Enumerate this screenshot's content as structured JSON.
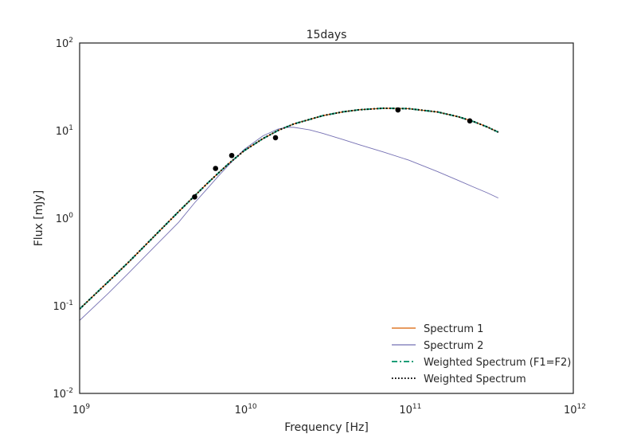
{
  "chart_data": {
    "type": "line",
    "title": "15days",
    "xlabel": "Frequency [Hz]",
    "ylabel": "Flux [mJy]",
    "xscale": "log",
    "yscale": "log",
    "xlim": [
      1000000000.0,
      1000000000000.0
    ],
    "ylim": [
      0.01,
      100
    ],
    "grid": false,
    "legend_position": "lower-right",
    "xticks": [
      {
        "value": 1000000000.0,
        "base": "10",
        "exp": "9"
      },
      {
        "value": 10000000000.0,
        "base": "10",
        "exp": "10"
      },
      {
        "value": 100000000000.0,
        "base": "10",
        "exp": "11"
      },
      {
        "value": 1000000000000.0,
        "base": "10",
        "exp": "12"
      }
    ],
    "yticks": [
      {
        "value": 0.01,
        "base": "10",
        "exp": "-2"
      },
      {
        "value": 0.1,
        "base": "10",
        "exp": "-1"
      },
      {
        "value": 1,
        "base": "10",
        "exp": "0"
      },
      {
        "value": 10,
        "base": "10",
        "exp": "1"
      },
      {
        "value": 100,
        "base": "10",
        "exp": "2"
      }
    ],
    "series": [
      {
        "name": "Spectrum 1",
        "color": "#d95f02",
        "style": "solid",
        "x": [
          1000000000.0,
          1500000000.0,
          2000000000.0,
          3000000000.0,
          4000000000.0,
          5000000000.0,
          6000000000.0,
          7000000000.0,
          8000000000.0,
          10000000000.0,
          13000000000.0,
          16000000000.0,
          20000000000.0,
          30000000000.0,
          40000000000.0,
          50000000000.0,
          70000000000.0,
          100000000000.0,
          150000000000.0,
          200000000000.0,
          250000000000.0,
          300000000000.0,
          350000000000.0
        ],
        "y": [
          0.092,
          0.19,
          0.32,
          0.69,
          1.19,
          1.8,
          2.52,
          3.3,
          4.15,
          5.9,
          8.1,
          10.0,
          11.9,
          14.8,
          16.4,
          17.3,
          18.0,
          17.8,
          16.3,
          14.4,
          12.6,
          11.0,
          9.6
        ]
      },
      {
        "name": "Spectrum 2",
        "color": "#7570b3",
        "style": "solid",
        "x": [
          1000000000.0,
          1500000000.0,
          2000000000.0,
          3000000000.0,
          4000000000.0,
          5000000000.0,
          6000000000.0,
          7000000000.0,
          8000000000.0,
          10000000000.0,
          13000000000.0,
          16000000000.0,
          18000000000.0,
          20000000000.0,
          25000000000.0,
          30000000000.0,
          40000000000.0,
          50000000000.0,
          70000000000.0,
          100000000000.0,
          150000000000.0,
          200000000000.0,
          250000000000.0,
          300000000000.0,
          350000000000.0
        ],
        "y": [
          0.068,
          0.14,
          0.24,
          0.52,
          0.9,
          1.5,
          2.2,
          3.05,
          4.0,
          6.1,
          8.7,
          10.4,
          10.9,
          10.9,
          10.2,
          9.3,
          7.9,
          6.9,
          5.7,
          4.6,
          3.4,
          2.7,
          2.25,
          1.95,
          1.7
        ]
      },
      {
        "name": "Weighted Spectrum (F1=F2)",
        "color": "#1b9e77",
        "style": "dashdot",
        "x": [
          1000000000.0,
          1500000000.0,
          2000000000.0,
          3000000000.0,
          4000000000.0,
          5000000000.0,
          6000000000.0,
          7000000000.0,
          8000000000.0,
          10000000000.0,
          13000000000.0,
          16000000000.0,
          20000000000.0,
          30000000000.0,
          40000000000.0,
          50000000000.0,
          70000000000.0,
          100000000000.0,
          150000000000.0,
          200000000000.0,
          250000000000.0,
          300000000000.0,
          350000000000.0
        ],
        "y": [
          0.092,
          0.19,
          0.32,
          0.69,
          1.19,
          1.8,
          2.52,
          3.3,
          4.15,
          5.9,
          8.1,
          10.0,
          11.9,
          14.8,
          16.4,
          17.3,
          18.0,
          17.8,
          16.3,
          14.4,
          12.6,
          11.0,
          9.6
        ]
      },
      {
        "name": "Weighted Spectrum",
        "color": "#000000",
        "style": "dotted",
        "x": [
          1000000000.0,
          1500000000.0,
          2000000000.0,
          3000000000.0,
          4000000000.0,
          5000000000.0,
          6000000000.0,
          7000000000.0,
          8000000000.0,
          10000000000.0,
          13000000000.0,
          16000000000.0,
          20000000000.0,
          30000000000.0,
          40000000000.0,
          50000000000.0,
          70000000000.0,
          100000000000.0,
          150000000000.0,
          200000000000.0,
          250000000000.0,
          300000000000.0,
          350000000000.0
        ],
        "y": [
          0.092,
          0.19,
          0.32,
          0.69,
          1.19,
          1.8,
          2.52,
          3.3,
          4.15,
          5.9,
          8.1,
          10.0,
          11.9,
          14.8,
          16.4,
          17.3,
          18.0,
          17.8,
          16.3,
          14.4,
          12.6,
          11.0,
          9.6
        ]
      }
    ],
    "points": {
      "color": "#000000",
      "x": [
        5000000000.0,
        6700000000.0,
        8400000000.0,
        15500000000.0,
        86000000000.0,
        235000000000.0
      ],
      "y": [
        1.75,
        3.7,
        5.2,
        8.3,
        17.2,
        12.9
      ]
    }
  }
}
